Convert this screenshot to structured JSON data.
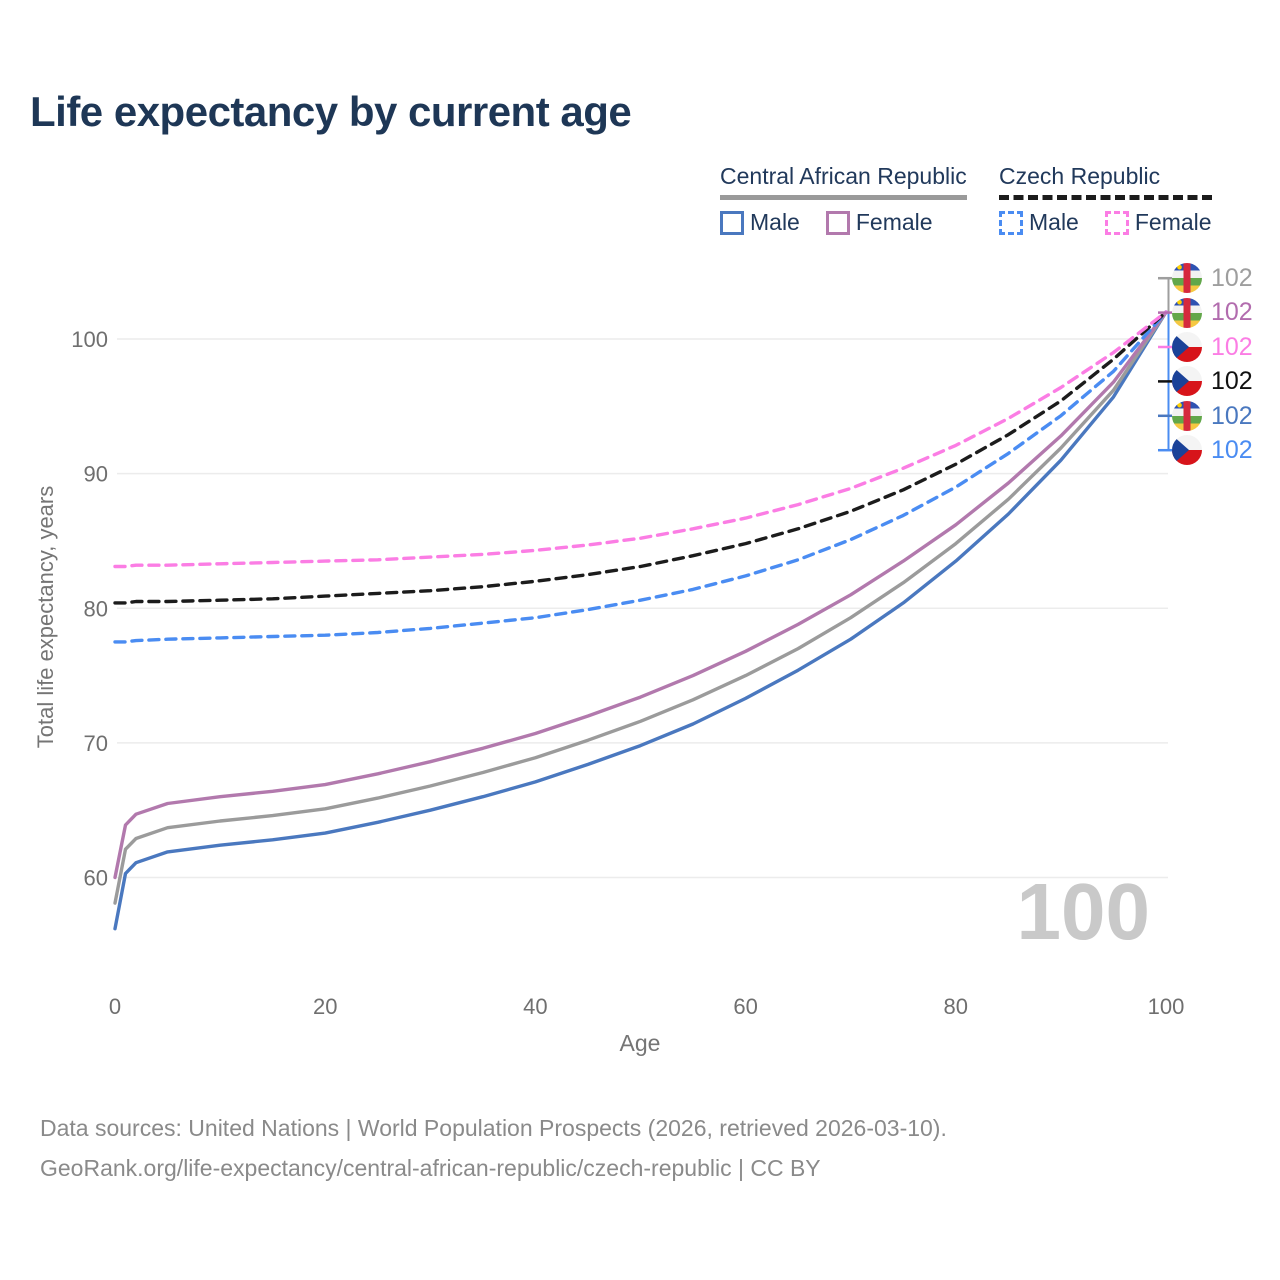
{
  "title": "Life expectancy by current age",
  "legend": {
    "groups": [
      {
        "label": "Central African Republic",
        "line_style": "solid",
        "underline_color": "#9a9a9a",
        "items": [
          {
            "label": "Male",
            "color": "#4a78bf"
          },
          {
            "label": "Female",
            "color": "#b279ad"
          }
        ]
      },
      {
        "label": "Czech Republic",
        "line_style": "dashed",
        "underline_color": "#1c1c1c",
        "items": [
          {
            "label": "Male",
            "color": "#4a8cf2"
          },
          {
            "label": "Female",
            "color": "#fb7de4"
          }
        ]
      }
    ]
  },
  "chart_data": {
    "type": "line",
    "title": "Life expectancy by current age",
    "xlabel": "Age",
    "ylabel": "Total life expectancy, years",
    "xlim": [
      0,
      100
    ],
    "ylim": [
      54,
      103
    ],
    "xticks": [
      0,
      20,
      40,
      60,
      80,
      100
    ],
    "yticks": [
      60,
      70,
      80,
      90,
      100
    ],
    "grid": true,
    "legend_position": "top-right",
    "x": [
      0,
      1,
      2,
      5,
      10,
      15,
      20,
      25,
      30,
      35,
      40,
      45,
      50,
      55,
      60,
      65,
      70,
      75,
      80,
      85,
      90,
      95,
      100
    ],
    "series": [
      {
        "name": "Central African Republic — Total",
        "color": "#9b9b9b",
        "dash": false,
        "end_label": "102",
        "values": [
          58.1,
          62.1,
          62.9,
          63.7,
          64.2,
          64.6,
          65.1,
          65.9,
          66.8,
          67.8,
          68.9,
          70.2,
          71.6,
          73.2,
          75.0,
          77.0,
          79.3,
          81.9,
          84.8,
          88.1,
          91.9,
          96.2,
          102
        ]
      },
      {
        "name": "Central African Republic — Female",
        "color": "#b279ad",
        "dash": false,
        "end_label": "102",
        "values": [
          60.0,
          63.9,
          64.7,
          65.5,
          66.0,
          66.4,
          66.9,
          67.7,
          68.6,
          69.6,
          70.7,
          72.0,
          73.4,
          75.0,
          76.8,
          78.8,
          81.0,
          83.5,
          86.2,
          89.3,
          92.8,
          96.8,
          102
        ]
      },
      {
        "name": "Czech Republic — Female",
        "color": "#fb7de4",
        "dash": true,
        "end_label": "102",
        "values": [
          83.1,
          83.1,
          83.2,
          83.2,
          83.3,
          83.4,
          83.5,
          83.6,
          83.8,
          84.0,
          84.3,
          84.7,
          85.2,
          85.9,
          86.7,
          87.7,
          88.9,
          90.4,
          92.1,
          94.1,
          96.4,
          99.0,
          102
        ]
      },
      {
        "name": "Czech Republic — Total",
        "color": "#1c1c1c",
        "dash": true,
        "end_label": "102",
        "values": [
          80.4,
          80.4,
          80.5,
          80.5,
          80.6,
          80.7,
          80.9,
          81.1,
          81.3,
          81.6,
          82.0,
          82.5,
          83.1,
          83.9,
          84.8,
          85.9,
          87.2,
          88.8,
          90.7,
          92.9,
          95.4,
          98.5,
          102
        ]
      },
      {
        "name": "Central African Republic — Male",
        "color": "#4a78bf",
        "dash": false,
        "end_label": "102",
        "values": [
          56.2,
          60.3,
          61.1,
          61.9,
          62.4,
          62.8,
          63.3,
          64.1,
          65.0,
          66.0,
          67.1,
          68.4,
          69.8,
          71.4,
          73.3,
          75.4,
          77.7,
          80.4,
          83.5,
          87.0,
          91.0,
          95.7,
          102
        ]
      },
      {
        "name": "Czech Republic — Male",
        "color": "#4a8cf2",
        "dash": true,
        "end_label": "102",
        "values": [
          77.5,
          77.5,
          77.6,
          77.7,
          77.8,
          77.9,
          78.0,
          78.2,
          78.5,
          78.9,
          79.3,
          79.9,
          80.6,
          81.4,
          82.4,
          83.6,
          85.1,
          86.9,
          89.0,
          91.5,
          94.3,
          97.6,
          102
        ]
      }
    ]
  },
  "end_labels": [
    {
      "value": "102",
      "flag": "central-african-republic",
      "color": "#9e9e9e"
    },
    {
      "value": "102",
      "flag": "central-african-republic",
      "color": "#b26cae"
    },
    {
      "value": "102",
      "flag": "czech-republic",
      "color": "#fb7de4"
    },
    {
      "value": "102",
      "flag": "czech-republic",
      "color": "#111111"
    },
    {
      "value": "102",
      "flag": "central-african-republic",
      "color": "#4a78bf"
    },
    {
      "value": "102",
      "flag": "czech-republic",
      "color": "#4a8cf2"
    }
  ],
  "watermark": "100",
  "footer": {
    "line1": "Data sources: United Nations | World Population Prospects (2026, retrieved 2026-03-10).",
    "line2": "GeoRank.org/life-expectancy/central-african-republic/czech-republic | CC BY"
  }
}
